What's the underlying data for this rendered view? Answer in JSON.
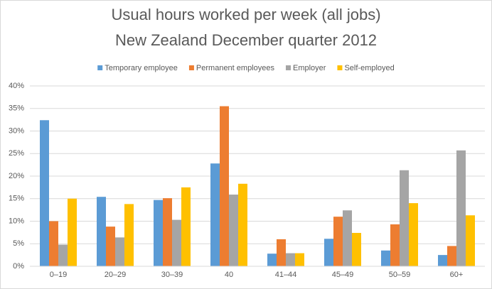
{
  "chart_data": {
    "type": "bar",
    "title": "Usual hours worked per week (all jobs)",
    "subtitle": "New Zealand December quarter 2012",
    "categories": [
      "0–19",
      "20–29",
      "30–39",
      "40",
      "41–44",
      "45–49",
      "50–59",
      "60+"
    ],
    "series": [
      {
        "name": "Temporary employee",
        "color": "#5b9bd5",
        "values": [
          32.4,
          15.4,
          14.7,
          22.8,
          2.8,
          6.1,
          3.5,
          2.5
        ]
      },
      {
        "name": "Permanent employees",
        "color": "#ed7d31",
        "values": [
          10.0,
          8.8,
          15.1,
          35.5,
          6.0,
          11.0,
          9.3,
          4.5
        ]
      },
      {
        "name": "Employer",
        "color": "#a5a5a5",
        "values": [
          4.8,
          6.4,
          10.3,
          15.9,
          2.9,
          12.4,
          21.3,
          25.7
        ]
      },
      {
        "name": "Self-employed",
        "color": "#ffc000",
        "values": [
          15.0,
          13.8,
          17.5,
          18.3,
          2.9,
          7.4,
          14.0,
          11.3
        ]
      }
    ],
    "ylim": [
      0,
      40
    ],
    "yticks": [
      {
        "value": 0,
        "label": "0%"
      },
      {
        "value": 5,
        "label": "5%"
      },
      {
        "value": 10,
        "label": "10%"
      },
      {
        "value": 15,
        "label": "15%"
      },
      {
        "value": 20,
        "label": "20%"
      },
      {
        "value": 25,
        "label": "25%"
      },
      {
        "value": 30,
        "label": "30%"
      },
      {
        "value": 35,
        "label": "35%"
      },
      {
        "value": 40,
        "label": "40%"
      }
    ],
    "grid": true,
    "legend": "top"
  }
}
